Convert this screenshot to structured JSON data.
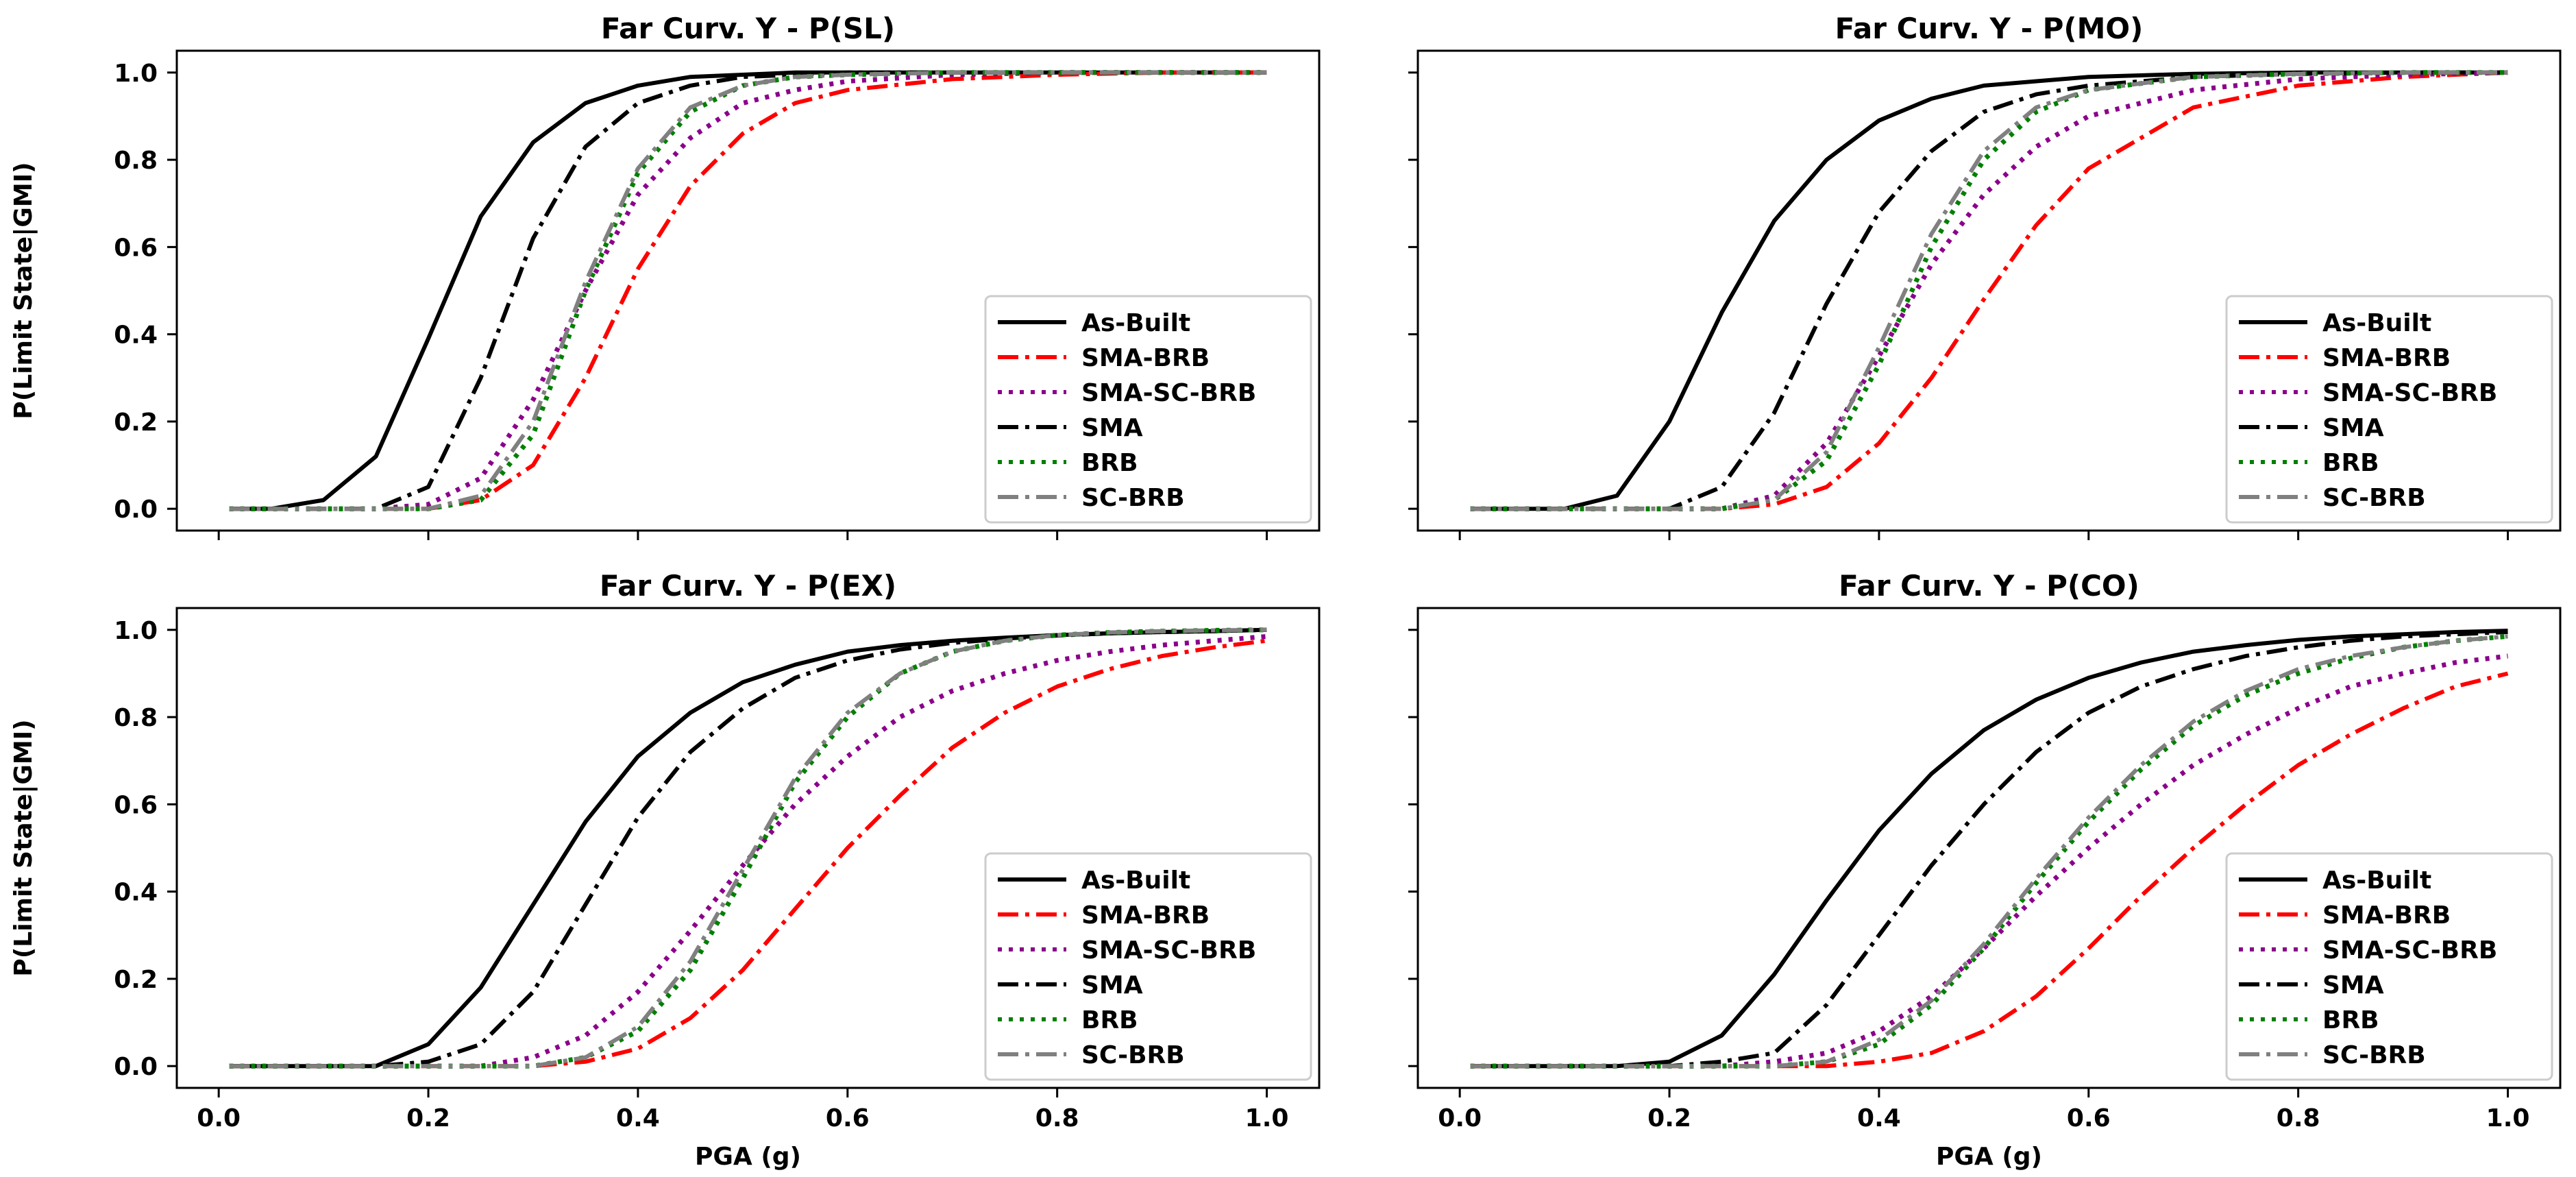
{
  "figure": {
    "ylabel": "P(Limit State|GMI)",
    "xlabel": "PGA (g)"
  },
  "legend_entries": [
    "As-Built",
    "SMA-BRB",
    "SMA-SC-BRB",
    "SMA",
    "BRB",
    "SC-BRB"
  ],
  "series_styles": [
    {
      "name": "As-Built",
      "color": "#000000",
      "dash": "solid"
    },
    {
      "name": "SMA-BRB",
      "color": "#ff0000",
      "dash": "dashdot"
    },
    {
      "name": "SMA-SC-BRB",
      "color": "#8b008b",
      "dash": "dotted"
    },
    {
      "name": "SMA",
      "color": "#000000",
      "dash": "dashdot"
    },
    {
      "name": "BRB",
      "color": "#008000",
      "dash": "dotted"
    },
    {
      "name": "SC-BRB",
      "color": "#808080",
      "dash": "dashdot"
    }
  ],
  "chart_data": [
    {
      "type": "line",
      "title": "Far Curv. Y - P(SL)",
      "xlabel": "",
      "ylabel": "P(Limit State|GMI)",
      "xlim": [
        -0.04,
        1.05
      ],
      "ylim": [
        -0.05,
        1.05
      ],
      "xticks": [
        0.0,
        0.2,
        0.4,
        0.6,
        0.8,
        1.0
      ],
      "xtick_labels_shown": false,
      "yticks": [
        0.0,
        0.2,
        0.4,
        0.6,
        0.8,
        1.0
      ],
      "ytick_labels": [
        "0.0",
        "0.2",
        "0.4",
        "0.6",
        "0.8",
        "1.0"
      ],
      "legend_position": "lower-right",
      "x": [
        0.01,
        0.05,
        0.1,
        0.15,
        0.2,
        0.25,
        0.3,
        0.35,
        0.4,
        0.45,
        0.5,
        0.55,
        0.6,
        0.7,
        0.8,
        0.9,
        1.0
      ],
      "series": [
        {
          "name": "As-Built",
          "values": [
            0.0,
            0.0,
            0.02,
            0.12,
            0.39,
            0.67,
            0.84,
            0.93,
            0.97,
            0.99,
            0.995,
            1.0,
            1.0,
            1.0,
            1.0,
            1.0,
            1.0
          ]
        },
        {
          "name": "SMA-BRB",
          "values": [
            0.0,
            0.0,
            0.0,
            0.0,
            0.0,
            0.02,
            0.1,
            0.3,
            0.55,
            0.74,
            0.86,
            0.93,
            0.96,
            0.985,
            0.995,
            1.0,
            1.0
          ]
        },
        {
          "name": "SMA-SC-BRB",
          "values": [
            0.0,
            0.0,
            0.0,
            0.0,
            0.01,
            0.07,
            0.25,
            0.5,
            0.72,
            0.85,
            0.93,
            0.96,
            0.98,
            0.995,
            1.0,
            1.0,
            1.0
          ]
        },
        {
          "name": "SMA",
          "values": [
            0.0,
            0.0,
            0.0,
            0.0,
            0.05,
            0.3,
            0.62,
            0.83,
            0.93,
            0.97,
            0.99,
            0.995,
            1.0,
            1.0,
            1.0,
            1.0,
            1.0
          ]
        },
        {
          "name": "BRB",
          "values": [
            0.0,
            0.0,
            0.0,
            0.0,
            0.0,
            0.02,
            0.17,
            0.5,
            0.77,
            0.91,
            0.97,
            0.99,
            0.995,
            1.0,
            1.0,
            1.0,
            1.0
          ]
        },
        {
          "name": "SC-BRB",
          "values": [
            0.0,
            0.0,
            0.0,
            0.0,
            0.0,
            0.03,
            0.2,
            0.52,
            0.78,
            0.92,
            0.97,
            0.99,
            0.995,
            1.0,
            1.0,
            1.0,
            1.0
          ]
        }
      ]
    },
    {
      "type": "line",
      "title": "Far Curv. Y - P(MO)",
      "xlabel": "",
      "ylabel": "",
      "xlim": [
        -0.04,
        1.05
      ],
      "ylim": [
        -0.05,
        1.05
      ],
      "xticks": [
        0.0,
        0.2,
        0.4,
        0.6,
        0.8,
        1.0
      ],
      "xtick_labels_shown": false,
      "yticks": [
        0.0,
        0.2,
        0.4,
        0.6,
        0.8,
        1.0
      ],
      "legend_position": "lower-right",
      "x": [
        0.01,
        0.05,
        0.1,
        0.15,
        0.2,
        0.25,
        0.3,
        0.35,
        0.4,
        0.45,
        0.5,
        0.55,
        0.6,
        0.7,
        0.8,
        0.9,
        1.0
      ],
      "series": [
        {
          "name": "As-Built",
          "values": [
            0.0,
            0.0,
            0.0,
            0.03,
            0.2,
            0.45,
            0.66,
            0.8,
            0.89,
            0.94,
            0.97,
            0.98,
            0.99,
            0.997,
            1.0,
            1.0,
            1.0
          ]
        },
        {
          "name": "SMA-BRB",
          "values": [
            0.0,
            0.0,
            0.0,
            0.0,
            0.0,
            0.0,
            0.01,
            0.05,
            0.15,
            0.3,
            0.48,
            0.65,
            0.78,
            0.92,
            0.97,
            0.99,
            1.0
          ]
        },
        {
          "name": "SMA-SC-BRB",
          "values": [
            0.0,
            0.0,
            0.0,
            0.0,
            0.0,
            0.0,
            0.03,
            0.15,
            0.35,
            0.56,
            0.72,
            0.83,
            0.9,
            0.96,
            0.985,
            0.995,
            1.0
          ]
        },
        {
          "name": "SMA",
          "values": [
            0.0,
            0.0,
            0.0,
            0.0,
            0.0,
            0.05,
            0.22,
            0.47,
            0.68,
            0.82,
            0.91,
            0.95,
            0.97,
            0.99,
            0.997,
            1.0,
            1.0
          ]
        },
        {
          "name": "BRB",
          "values": [
            0.0,
            0.0,
            0.0,
            0.0,
            0.0,
            0.0,
            0.02,
            0.11,
            0.33,
            0.6,
            0.8,
            0.91,
            0.96,
            0.99,
            0.997,
            1.0,
            1.0
          ]
        },
        {
          "name": "SC-BRB",
          "values": [
            0.0,
            0.0,
            0.0,
            0.0,
            0.0,
            0.0,
            0.02,
            0.13,
            0.37,
            0.63,
            0.82,
            0.92,
            0.96,
            0.99,
            0.997,
            1.0,
            1.0
          ]
        }
      ]
    },
    {
      "type": "line",
      "title": "Far Curv. Y - P(EX)",
      "xlabel": "PGA (g)",
      "ylabel": "P(Limit State|GMI)",
      "xlim": [
        -0.04,
        1.05
      ],
      "ylim": [
        -0.05,
        1.05
      ],
      "xticks": [
        0.0,
        0.2,
        0.4,
        0.6,
        0.8,
        1.0
      ],
      "xtick_labels": [
        "0.0",
        "0.2",
        "0.4",
        "0.6",
        "0.8",
        "1.0"
      ],
      "xtick_labels_shown": true,
      "yticks": [
        0.0,
        0.2,
        0.4,
        0.6,
        0.8,
        1.0
      ],
      "ytick_labels": [
        "0.0",
        "0.2",
        "0.4",
        "0.6",
        "0.8",
        "1.0"
      ],
      "legend_position": "lower-right",
      "x": [
        0.01,
        0.05,
        0.1,
        0.15,
        0.2,
        0.25,
        0.3,
        0.35,
        0.4,
        0.45,
        0.5,
        0.55,
        0.6,
        0.65,
        0.7,
        0.75,
        0.8,
        0.85,
        0.9,
        0.95,
        1.0
      ],
      "series": [
        {
          "name": "As-Built",
          "values": [
            0.0,
            0.0,
            0.0,
            0.0,
            0.05,
            0.18,
            0.37,
            0.56,
            0.71,
            0.81,
            0.88,
            0.92,
            0.95,
            0.965,
            0.975,
            0.982,
            0.988,
            0.992,
            0.995,
            0.997,
            1.0
          ]
        },
        {
          "name": "SMA-BRB",
          "values": [
            0.0,
            0.0,
            0.0,
            0.0,
            0.0,
            0.0,
            0.0,
            0.01,
            0.04,
            0.11,
            0.22,
            0.36,
            0.5,
            0.62,
            0.73,
            0.81,
            0.87,
            0.91,
            0.94,
            0.96,
            0.975
          ]
        },
        {
          "name": "SMA-SC-BRB",
          "values": [
            0.0,
            0.0,
            0.0,
            0.0,
            0.0,
            0.0,
            0.02,
            0.07,
            0.17,
            0.31,
            0.46,
            0.6,
            0.71,
            0.8,
            0.86,
            0.9,
            0.93,
            0.95,
            0.965,
            0.975,
            0.985
          ]
        },
        {
          "name": "SMA",
          "values": [
            0.0,
            0.0,
            0.0,
            0.0,
            0.01,
            0.05,
            0.17,
            0.37,
            0.57,
            0.72,
            0.82,
            0.89,
            0.93,
            0.955,
            0.97,
            0.98,
            0.987,
            0.992,
            0.995,
            0.997,
            1.0
          ]
        },
        {
          "name": "BRB",
          "values": [
            0.0,
            0.0,
            0.0,
            0.0,
            0.0,
            0.0,
            0.0,
            0.02,
            0.08,
            0.22,
            0.43,
            0.65,
            0.8,
            0.9,
            0.95,
            0.975,
            0.988,
            0.994,
            0.997,
            0.999,
            1.0
          ]
        },
        {
          "name": "SC-BRB",
          "values": [
            0.0,
            0.0,
            0.0,
            0.0,
            0.0,
            0.0,
            0.0,
            0.02,
            0.09,
            0.24,
            0.45,
            0.66,
            0.81,
            0.9,
            0.95,
            0.975,
            0.988,
            0.994,
            0.997,
            0.999,
            1.0
          ]
        }
      ]
    },
    {
      "type": "line",
      "title": "Far Curv. Y - P(CO)",
      "xlabel": "PGA (g)",
      "ylabel": "",
      "xlim": [
        -0.04,
        1.05
      ],
      "ylim": [
        -0.05,
        1.05
      ],
      "xticks": [
        0.0,
        0.2,
        0.4,
        0.6,
        0.8,
        1.0
      ],
      "xtick_labels": [
        "0.0",
        "0.2",
        "0.4",
        "0.6",
        "0.8",
        "1.0"
      ],
      "xtick_labels_shown": true,
      "yticks": [
        0.0,
        0.2,
        0.4,
        0.6,
        0.8,
        1.0
      ],
      "legend_position": "lower-right",
      "x": [
        0.01,
        0.05,
        0.1,
        0.15,
        0.2,
        0.25,
        0.3,
        0.35,
        0.4,
        0.45,
        0.5,
        0.55,
        0.6,
        0.65,
        0.7,
        0.75,
        0.8,
        0.85,
        0.9,
        0.95,
        1.0
      ],
      "series": [
        {
          "name": "As-Built",
          "values": [
            0.0,
            0.0,
            0.0,
            0.0,
            0.01,
            0.07,
            0.21,
            0.38,
            0.54,
            0.67,
            0.77,
            0.84,
            0.89,
            0.925,
            0.95,
            0.965,
            0.977,
            0.985,
            0.99,
            0.995,
            0.998
          ]
        },
        {
          "name": "SMA-BRB",
          "values": [
            0.0,
            0.0,
            0.0,
            0.0,
            0.0,
            0.0,
            0.0,
            0.0,
            0.01,
            0.03,
            0.08,
            0.16,
            0.27,
            0.39,
            0.5,
            0.6,
            0.69,
            0.76,
            0.82,
            0.87,
            0.9
          ]
        },
        {
          "name": "SMA-SC-BRB",
          "values": [
            0.0,
            0.0,
            0.0,
            0.0,
            0.0,
            0.0,
            0.01,
            0.03,
            0.08,
            0.16,
            0.27,
            0.39,
            0.5,
            0.6,
            0.69,
            0.76,
            0.82,
            0.87,
            0.9,
            0.925,
            0.94
          ]
        },
        {
          "name": "SMA",
          "values": [
            0.0,
            0.0,
            0.0,
            0.0,
            0.0,
            0.01,
            0.03,
            0.14,
            0.3,
            0.46,
            0.6,
            0.72,
            0.81,
            0.87,
            0.91,
            0.94,
            0.96,
            0.975,
            0.985,
            0.99,
            0.995
          ]
        },
        {
          "name": "BRB",
          "values": [
            0.0,
            0.0,
            0.0,
            0.0,
            0.0,
            0.0,
            0.0,
            0.01,
            0.05,
            0.14,
            0.27,
            0.42,
            0.56,
            0.68,
            0.78,
            0.85,
            0.9,
            0.935,
            0.96,
            0.975,
            0.985
          ]
        },
        {
          "name": "SC-BRB",
          "values": [
            0.0,
            0.0,
            0.0,
            0.0,
            0.0,
            0.0,
            0.0,
            0.01,
            0.06,
            0.15,
            0.28,
            0.43,
            0.57,
            0.69,
            0.79,
            0.86,
            0.91,
            0.94,
            0.96,
            0.975,
            0.985
          ]
        }
      ]
    }
  ]
}
